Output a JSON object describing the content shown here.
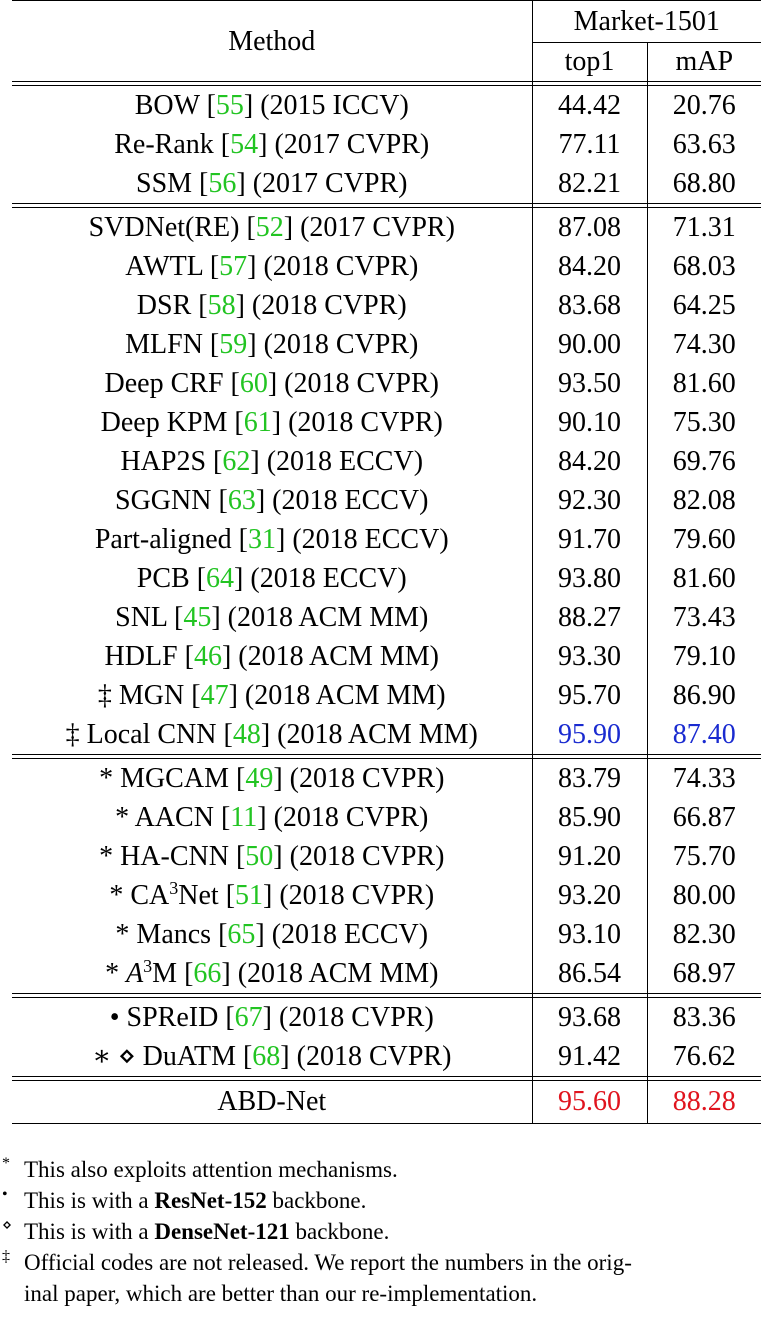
{
  "header": {
    "method": "Method",
    "dataset": "Market-1501",
    "top1": "top1",
    "map": "mAP"
  },
  "groups": [
    [
      {
        "pre": "",
        "name": "BOW",
        "ref": "55",
        "venue": "(2015 ICCV)",
        "top1": "44.42",
        "map": "20.76"
      },
      {
        "pre": "",
        "name": "Re-Rank",
        "ref": "54",
        "venue": "(2017 CVPR)",
        "top1": "77.11",
        "map": "63.63"
      },
      {
        "pre": "",
        "name": "SSM",
        "ref": "56",
        "venue": "(2017 CVPR)",
        "top1": "82.21",
        "map": "68.80"
      }
    ],
    [
      {
        "pre": "",
        "name": "SVDNet(RE)",
        "ref": "52",
        "venue": "(2017 CVPR)",
        "top1": "87.08",
        "map": "71.31"
      },
      {
        "pre": "",
        "name": "AWTL",
        "ref": "57",
        "venue": "(2018 CVPR)",
        "top1": "84.20",
        "map": "68.03"
      },
      {
        "pre": "",
        "name": "DSR",
        "ref": "58",
        "venue": "(2018 CVPR)",
        "top1": "83.68",
        "map": "64.25"
      },
      {
        "pre": "",
        "name": "MLFN",
        "ref": "59",
        "venue": "(2018 CVPR)",
        "top1": "90.00",
        "map": "74.30"
      },
      {
        "pre": "",
        "name": "Deep CRF",
        "ref": "60",
        "venue": "(2018 CVPR)",
        "top1": "93.50",
        "map": "81.60"
      },
      {
        "pre": "",
        "name": "Deep KPM",
        "ref": "61",
        "venue": "(2018 CVPR)",
        "top1": "90.10",
        "map": "75.30"
      },
      {
        "pre": "",
        "name": "HAP2S",
        "ref": "62",
        "venue": "(2018 ECCV)",
        "top1": "84.20",
        "map": "69.76"
      },
      {
        "pre": "",
        "name": "SGGNN",
        "ref": "63",
        "venue": "(2018 ECCV)",
        "top1": "92.30",
        "map": "82.08"
      },
      {
        "pre": "",
        "name": "Part-aligned",
        "ref": "31",
        "venue": "(2018 ECCV)",
        "top1": "91.70",
        "map": "79.60"
      },
      {
        "pre": "",
        "name": "PCB",
        "ref": "64",
        "venue": "(2018 ECCV)",
        "top1": "93.80",
        "map": "81.60"
      },
      {
        "pre": "",
        "name": "SNL",
        "ref": "45",
        "venue": "(2018 ACM MM)",
        "top1": "88.27",
        "map": "73.43"
      },
      {
        "pre": "",
        "name": "HDLF",
        "ref": "46",
        "venue": "(2018 ACM MM)",
        "top1": "93.30",
        "map": "79.10"
      },
      {
        "pre": "‡",
        "name": "MGN",
        "ref": "47",
        "venue": "(2018 ACM MM)",
        "top1": "95.70",
        "map": "86.90"
      },
      {
        "pre": "‡",
        "name": "Local CNN",
        "ref": "48",
        "venue": "(2018 ACM MM)",
        "top1": "95.90",
        "map": "87.40",
        "hl": "blue"
      }
    ],
    [
      {
        "pre": "*",
        "name": "MGCAM",
        "ref": "49",
        "venue": "(2018 CVPR)",
        "top1": "83.79",
        "map": "74.33"
      },
      {
        "pre": "*",
        "name": "AACN",
        "ref": "11",
        "venue": "(2018 CVPR)",
        "top1": "85.90",
        "map": "66.87"
      },
      {
        "pre": "*",
        "name": "HA-CNN",
        "ref": "50",
        "venue": "(2018 CVPR)",
        "top1": "91.20",
        "map": "75.70"
      },
      {
        "pre": "*",
        "name": "CA",
        "sup": "3",
        "name2": "Net",
        "ref": "51",
        "venue": "(2018 CVPR)",
        "top1": "93.20",
        "map": "80.00"
      },
      {
        "pre": "*",
        "name": "Mancs",
        "ref": "65",
        "venue": "(2018 ECCV)",
        "top1": "93.10",
        "map": "82.30"
      },
      {
        "pre": "*",
        "name": "A",
        "sup": "3",
        "name2": "M",
        "ref": "66",
        "venue": "(2018 ACM MM)",
        "top1": "86.54",
        "map": "68.97"
      }
    ],
    [
      {
        "pre": "•",
        "name": "SPReID",
        "ref": "67",
        "venue": "(2018 CVPR)",
        "top1": "93.68",
        "map": "83.36"
      },
      {
        "pre": "∗ ⋄",
        "name": "DuATM",
        "ref": "68",
        "venue": "(2018 CVPR)",
        "top1": "91.42",
        "map": "76.62"
      }
    ]
  ],
  "final": {
    "name": "ABD-Net",
    "top1": "95.60",
    "map": "88.28"
  },
  "colors": {
    "ref": "#22c422",
    "second_best": "#1a2bd0",
    "best": "#e0141e"
  },
  "notes": [
    {
      "mark": "*",
      "parts": [
        "This also exploits attention mechanisms."
      ]
    },
    {
      "mark": "•",
      "parts": [
        "This is with a ",
        "ResNet-152",
        " backbone."
      ]
    },
    {
      "mark": "⋄",
      "parts": [
        "This is with a ",
        "DenseNet-121",
        " backbone."
      ]
    },
    {
      "mark": "‡",
      "parts": [
        "Official codes are not released. We report the numbers in the orig-",
        "inal paper, which are better than our re-implementation."
      ]
    }
  ]
}
